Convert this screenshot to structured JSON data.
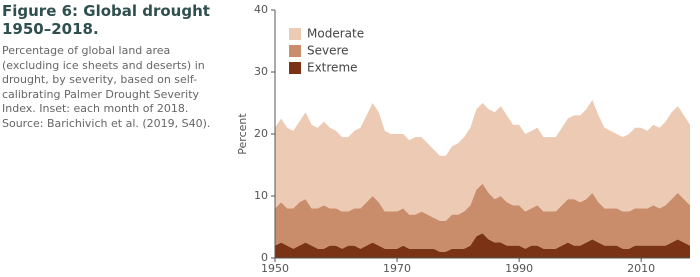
{
  "chart_data": {
    "type": "stacked-area",
    "title": "Figure 6: Global drought 1950–2018.",
    "subtitle": "Percentage of global land area (excluding ice sheets and deserts) in drought, by severity, based on self-calibrating Palmer Drought Severity Index. Inset: each month of 2018. Source: Barichivich et al. (2019, S40).",
    "y_label": "Percent",
    "x": [
      1950,
      1951,
      1952,
      1953,
      1954,
      1955,
      1956,
      1957,
      1958,
      1959,
      1960,
      1961,
      1962,
      1963,
      1964,
      1965,
      1966,
      1967,
      1968,
      1969,
      1970,
      1971,
      1972,
      1973,
      1974,
      1975,
      1976,
      1977,
      1978,
      1979,
      1980,
      1981,
      1982,
      1983,
      1984,
      1985,
      1986,
      1987,
      1988,
      1989,
      1990,
      1991,
      1992,
      1993,
      1994,
      1995,
      1996,
      1997,
      1998,
      1999,
      2000,
      2001,
      2002,
      2003,
      2004,
      2005,
      2006,
      2007,
      2008,
      2009,
      2010,
      2011,
      2012,
      2013,
      2014,
      2015,
      2016,
      2017,
      2018
    ],
    "series": [
      {
        "name": "Moderate",
        "color": "#eccab4",
        "values": [
          13,
          13.5,
          13,
          12.5,
          13,
          14,
          13.5,
          13,
          13.5,
          13,
          12.5,
          12,
          12,
          12.5,
          13,
          14,
          15,
          14.5,
          13,
          12.5,
          12.5,
          12,
          12,
          12.5,
          12,
          11.5,
          11,
          10.5,
          10.5,
          11,
          11.5,
          12,
          12.5,
          13,
          13,
          13.5,
          14,
          14.5,
          14,
          13,
          13,
          12.5,
          12.5,
          12.5,
          12,
          12,
          12,
          12.5,
          13,
          13.5,
          14,
          14.5,
          15,
          14,
          13,
          12.5,
          12,
          12,
          12.5,
          13,
          13,
          12.5,
          13,
          13,
          13.5,
          14,
          14,
          13.5,
          13
        ]
      },
      {
        "name": "Severe",
        "color": "#c98d6c",
        "values": [
          6,
          6.5,
          6,
          6.5,
          7,
          7,
          6,
          6.5,
          7,
          6,
          6,
          6,
          5.5,
          6,
          6.5,
          7,
          7.5,
          7,
          6,
          6,
          6,
          6,
          5.5,
          5.5,
          6,
          5.5,
          5,
          5,
          5,
          5.5,
          5.5,
          6,
          6.5,
          7.5,
          8,
          7.5,
          7,
          7.5,
          7,
          6.5,
          6.5,
          6,
          6,
          6.5,
          6,
          6,
          6,
          6.5,
          7,
          7.5,
          7,
          7,
          7.5,
          6.5,
          6,
          6,
          6,
          6,
          6,
          6,
          6,
          6,
          6.5,
          6,
          6.5,
          7,
          7.5,
          7,
          6.5
        ]
      },
      {
        "name": "Extreme",
        "color": "#7b3315",
        "values": [
          2,
          2.5,
          2,
          1.5,
          2,
          2.5,
          2,
          1.5,
          1.5,
          2,
          2,
          1.5,
          2,
          2,
          1.5,
          2,
          2.5,
          2,
          1.5,
          1.5,
          1.5,
          2,
          1.5,
          1.5,
          1.5,
          1.5,
          1.5,
          1,
          1,
          1.5,
          1.5,
          1.5,
          2,
          3.5,
          4,
          3,
          2.5,
          2.5,
          2,
          2,
          2,
          1.5,
          2,
          2,
          1.5,
          1.5,
          1.5,
          2,
          2.5,
          2,
          2,
          2.5,
          3,
          2.5,
          2,
          2,
          2,
          1.5,
          1.5,
          2,
          2,
          2,
          2,
          2,
          2,
          2.5,
          3,
          2.5,
          2
        ]
      }
    ],
    "xlim": [
      1950,
      2018
    ],
    "xticks": [
      1950,
      1970,
      1990,
      2010
    ],
    "ylim": [
      0,
      40
    ],
    "yticks": [
      0,
      10,
      20,
      30,
      40
    ],
    "legend": "upper-left",
    "grid": false
  }
}
